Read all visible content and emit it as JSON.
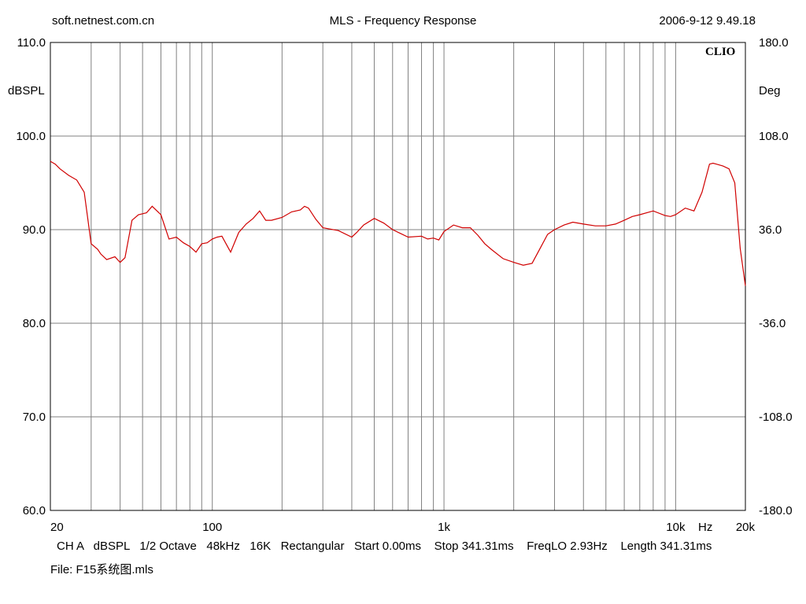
{
  "header": {
    "left": "soft.netnest.com.cn",
    "center": "MLS - Frequency Response",
    "right": "2006-9-12 9.49.18"
  },
  "footer": {
    "info": "CH A   dBSPL   1/2 Octave   48kHz   16K   Rectangular   Start 0.00ms    Stop 341.31ms    FreqLO 2.93Hz    Length 341.31ms",
    "file": "File: F15系统图.mls"
  },
  "chart_data": {
    "type": "line",
    "logo": "CLIO",
    "xscale": "log",
    "xlim": [
      20,
      20000
    ],
    "ylim": [
      60,
      110
    ],
    "y2lim": [
      -180,
      180
    ],
    "ylabel": "dBSPL",
    "y2label": "Deg",
    "xlabel": "Hz",
    "grid": true,
    "line_color": "#d00000",
    "yticks": [
      {
        "value": 60,
        "label": "60.0"
      },
      {
        "value": 70,
        "label": "70.0"
      },
      {
        "value": 80,
        "label": "80.0"
      },
      {
        "value": 90,
        "label": "90.0"
      },
      {
        "value": 100,
        "label": "100.0"
      },
      {
        "value": 110,
        "label": "110.0"
      }
    ],
    "y2ticks": [
      {
        "value": -180,
        "label": "-180.0"
      },
      {
        "value": -108,
        "label": "-108.0"
      },
      {
        "value": -36,
        "label": "-36.0"
      },
      {
        "value": 36,
        "label": "36.0"
      },
      {
        "value": 108,
        "label": "108.0"
      },
      {
        "value": 180,
        "label": "180.0"
      }
    ],
    "xticks": [
      {
        "value": 20,
        "label": "20"
      },
      {
        "value": 100,
        "label": "100"
      },
      {
        "value": 1000,
        "label": "1k"
      },
      {
        "value": 10000,
        "label": "10k"
      },
      {
        "value": 20000,
        "label": "20k"
      }
    ],
    "series": [
      {
        "x": [
          20,
          21,
          22,
          24,
          26,
          28,
          30,
          32,
          33,
          35,
          38,
          40,
          42,
          45,
          48,
          50,
          52,
          55,
          60,
          65,
          70,
          75,
          80,
          85,
          90,
          95,
          100,
          105,
          110,
          120,
          130,
          140,
          150,
          160,
          170,
          180,
          200,
          220,
          240,
          250,
          260,
          280,
          300,
          350,
          400,
          420,
          450,
          500,
          550,
          600,
          700,
          800,
          850,
          900,
          950,
          1000,
          1100,
          1200,
          1300,
          1400,
          1500,
          1600,
          1800,
          2000,
          2200,
          2400,
          2600,
          2800,
          3000,
          3300,
          3600,
          4000,
          4500,
          5000,
          5500,
          6000,
          6500,
          7000,
          8000,
          9000,
          9500,
          10000,
          11000,
          12000,
          13000,
          14000,
          14500,
          15000,
          16000,
          17000,
          18000,
          19000,
          20000
        ],
        "y": [
          97.3,
          97.0,
          96.5,
          95.8,
          95.3,
          94.0,
          88.5,
          87.9,
          87.4,
          86.8,
          87.1,
          86.5,
          87.0,
          91.0,
          91.6,
          91.7,
          91.8,
          92.5,
          91.6,
          89.0,
          89.2,
          88.6,
          88.2,
          87.6,
          88.5,
          88.6,
          89.0,
          89.2,
          89.3,
          87.6,
          89.7,
          90.6,
          91.2,
          92.0,
          91.0,
          91.0,
          91.3,
          91.9,
          92.1,
          92.5,
          92.3,
          91.1,
          90.2,
          89.9,
          89.2,
          89.7,
          90.5,
          91.2,
          90.7,
          90.0,
          89.2,
          89.3,
          89.0,
          89.1,
          88.9,
          89.8,
          90.5,
          90.2,
          90.2,
          89.4,
          88.5,
          87.9,
          86.9,
          86.5,
          86.2,
          86.4,
          88.0,
          89.5,
          90.0,
          90.5,
          90.8,
          90.6,
          90.4,
          90.4,
          90.6,
          91.0,
          91.4,
          91.6,
          92.0,
          91.5,
          91.4,
          91.6,
          92.3,
          92.0,
          94.0,
          97.0,
          97.1,
          97.0,
          96.8,
          96.5,
          95.0,
          88.0,
          84.0
        ]
      }
    ]
  }
}
